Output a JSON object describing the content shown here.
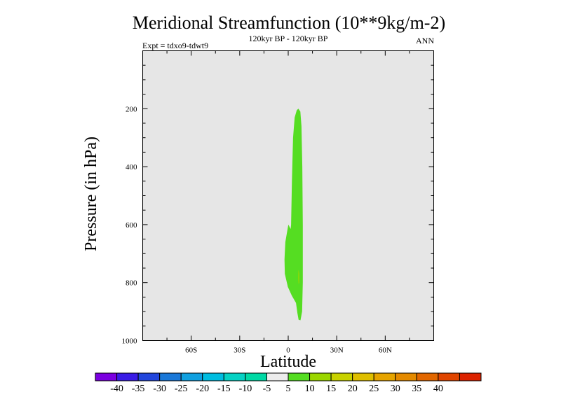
{
  "chart_data": {
    "type": "contour",
    "title": "Meridional Streamfunction (10**9kg/m-2)",
    "subtitle_left": "Expt = tdxo9-tdwt9",
    "subtitle_center": "120kyr BP - 120kyr BP",
    "subtitle_right": "ANN",
    "xlabel": "Latitude",
    "ylabel": "Pressure (in hPa)",
    "xlim": [
      -90,
      90
    ],
    "ylim": [
      1000,
      0
    ],
    "background_color": "#e6e6e6",
    "x_ticks": [
      {
        "value": -60,
        "label": "60S"
      },
      {
        "value": -30,
        "label": "30S"
      },
      {
        "value": 0,
        "label": "0"
      },
      {
        "value": 30,
        "label": "30N"
      },
      {
        "value": 60,
        "label": "60N"
      }
    ],
    "y_ticks": [
      {
        "value": 200,
        "label": "200"
      },
      {
        "value": 400,
        "label": "400"
      },
      {
        "value": 600,
        "label": "600"
      },
      {
        "value": 800,
        "label": "800"
      },
      {
        "value": 1000,
        "label": "1000"
      }
    ],
    "filled_regions": [
      {
        "level_range": [
          5,
          10
        ],
        "color": "#55dd22",
        "outline": [
          [
            6.3,
            200
          ],
          [
            7.5,
            210
          ],
          [
            8.2,
            260
          ],
          [
            8.7,
            400
          ],
          [
            9.0,
            600
          ],
          [
            9.0,
            800
          ],
          [
            8.6,
            900
          ],
          [
            7.6,
            930
          ],
          [
            6.4,
            928
          ],
          [
            5.7,
            905
          ],
          [
            4.8,
            870
          ],
          [
            2.2,
            845
          ],
          [
            -0.2,
            815
          ],
          [
            -2.1,
            770
          ],
          [
            -2.3,
            720
          ],
          [
            -1.8,
            660
          ],
          [
            -0.4,
            615
          ],
          [
            0.1,
            600
          ],
          [
            1.5,
            615
          ],
          [
            1.8,
            600
          ],
          [
            2.3,
            450
          ],
          [
            3.0,
            300
          ],
          [
            4.0,
            230
          ],
          [
            5.3,
            205
          ]
        ]
      },
      {
        "level_range": [
          10,
          15
        ],
        "color": "#9bd700",
        "outline": [
          [
            6.3,
            755
          ],
          [
            6.8,
            770
          ],
          [
            6.8,
            800
          ],
          [
            6.4,
            805
          ],
          [
            6.2,
            785
          ]
        ]
      }
    ],
    "colorbar": {
      "colors": [
        "#7b00e0",
        "#3a1ce6",
        "#2246dc",
        "#1a78d8",
        "#10a0e0",
        "#00bde0",
        "#06d2c4",
        "#00d9a5",
        "#ececec",
        "#55dd22",
        "#9bd700",
        "#c8d200",
        "#dfbf00",
        "#e6a400",
        "#e48a00",
        "#e26700",
        "#e04500",
        "#dc2200"
      ],
      "labels": [
        "-40",
        "-35",
        "-30",
        "-25",
        "-20",
        "-15",
        "-10",
        "-5",
        "5",
        "10",
        "15",
        "20",
        "25",
        "30",
        "35",
        "40"
      ]
    }
  }
}
